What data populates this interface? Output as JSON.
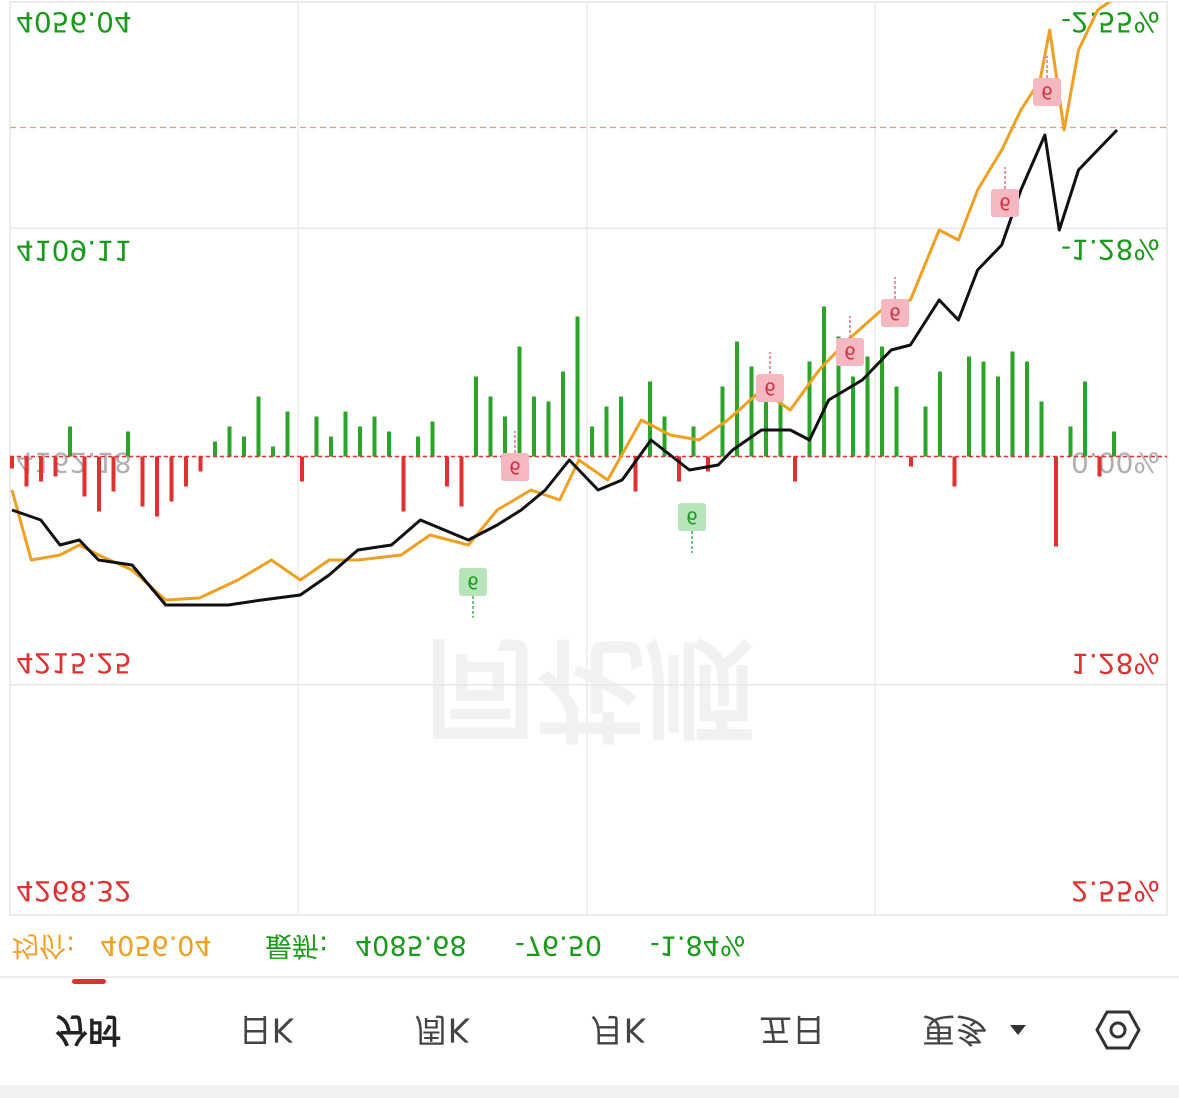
{
  "chart_data": {
    "type": "line",
    "ylim": [
      4056.04,
      4268.32
    ],
    "yticks": [
      4056.04,
      4109.11,
      4162.18,
      4215.25,
      4268.32
    ],
    "y2lim": [
      -2.55,
      2.55
    ],
    "y2ticks": [
      {
        "value": -2.55,
        "label": "-2.55%"
      },
      {
        "value": -1.28,
        "label": "-1.28%"
      },
      {
        "value": 0,
        "label": "0.00%"
      },
      {
        "value": 1.28,
        "label": "1.28%"
      },
      {
        "value": 2.55,
        "label": "2.55%"
      }
    ],
    "xlim": [
      0,
      240
    ],
    "grid": true,
    "series": [
      {
        "name": "价格",
        "color": "#111111",
        "x": [
          0,
          6,
          10,
          14,
          18,
          25,
          32,
          39,
          45,
          52,
          60,
          66,
          72,
          79,
          85,
          95,
          101,
          106,
          111,
          116,
          122,
          127,
          133,
          137,
          141,
          147,
          150,
          156,
          162,
          166,
          170,
          177,
          183,
          187,
          193,
          197,
          201,
          206,
          210,
          215,
          218,
          222,
          226,
          230
        ],
        "values": [
          4174.62,
          4176.95,
          4182.76,
          4181.6,
          4186.25,
          4187.41,
          4196.71,
          4196.71,
          4196.71,
          4195.55,
          4194.38,
          4189.73,
          4183.92,
          4182.76,
          4176.95,
          4181.6,
          4178.11,
          4174.62,
          4169.97,
          4163.0,
          4169.97,
          4167.64,
          4158.34,
          4161.83,
          4165.32,
          4164.16,
          4160.67,
          4156.02,
          4156.02,
          4158.34,
          4149.04,
          4144.39,
          4137.42,
          4136.25,
          4125.79,
          4130.44,
          4118.82,
          4113.0,
          4100.22,
          4087.43,
          4109.52,
          4095.57,
          4090.92,
          4086.27
        ]
      },
      {
        "name": "均价",
        "color": "#f0a020",
        "x": [
          0,
          4,
          10,
          14,
          18,
          25,
          32,
          39,
          47,
          54,
          60,
          66,
          72,
          81,
          87,
          95,
          101,
          108,
          114,
          118,
          124,
          131,
          137,
          143,
          149,
          156,
          162,
          168,
          174,
          181,
          187,
          193,
          197,
          201,
          206,
          210,
          214,
          216,
          219,
          222,
          226,
          229
        ],
        "values": [
          4169.97,
          4186.25,
          4185.09,
          4182.76,
          4185.09,
          4188.57,
          4195.55,
          4195.08,
          4190.9,
          4186.25,
          4190.9,
          4186.25,
          4186.25,
          4185.09,
          4180.43,
          4182.76,
          4174.62,
          4169.97,
          4172.3,
          4163.0,
          4167.64,
          4153.69,
          4157.18,
          4158.34,
          4153.69,
          4146.72,
          4151.37,
          4142.07,
          4135.09,
          4128.12,
          4125.79,
          4109.52,
          4111.84,
          4100.22,
          4090.92,
          4081.62,
          4074.64,
          4063.02,
          4086.27,
          4067.67,
          4058.37,
          4056.04
        ]
      }
    ],
    "bars": {
      "up_color": "#e03030",
      "down_color": "#2aa52a",
      "values": [
        12,
        30,
        25,
        20,
        -30,
        40,
        55,
        35,
        -25,
        50,
        60,
        45,
        30,
        15,
        -15,
        -30,
        -20,
        -60,
        -10,
        -45,
        25,
        -40,
        -20,
        -45,
        -30,
        -40,
        -25,
        55,
        -20,
        -35,
        30,
        50,
        -80,
        -60,
        -40,
        -110,
        -60,
        -55,
        -85,
        -140,
        -30,
        -50,
        -60,
        35,
        -75,
        -40,
        25,
        -30,
        15,
        -70,
        -115,
        -90,
        -60,
        -80,
        25,
        -95,
        -150,
        -120,
        -80,
        -100,
        -110,
        -70,
        10,
        -50,
        -85,
        30,
        -100,
        -95,
        -80,
        -105,
        -95,
        -55,
        90,
        -30,
        -75,
        20,
        -25
      ]
    },
    "signals": [
      {
        "label": "6",
        "color": "#f5b8c0"
      },
      {
        "label": "6",
        "color": "#f5b8c0"
      },
      {
        "label": "6",
        "color": "#f5b8c0"
      },
      {
        "label": "6",
        "color": "#f5b8c0"
      },
      {
        "label": "6",
        "color": "#f5b8c0"
      },
      {
        "label": "6",
        "color": "#f5b8c0"
      },
      {
        "label": "6",
        "color": "#b8e4bc"
      },
      {
        "label": "6",
        "color": "#b8e4bc"
      }
    ],
    "watermark": "同花顺"
  },
  "footer": {
    "avg_label": "均价:",
    "avg": 4056.04,
    "latest_label": "最新:",
    "latest": 4085.68,
    "change": "-76.50",
    "change_pct": "-1.84%"
  },
  "tabs": [
    "分时",
    "日K",
    "周K",
    "月K",
    "五日",
    "更多"
  ]
}
